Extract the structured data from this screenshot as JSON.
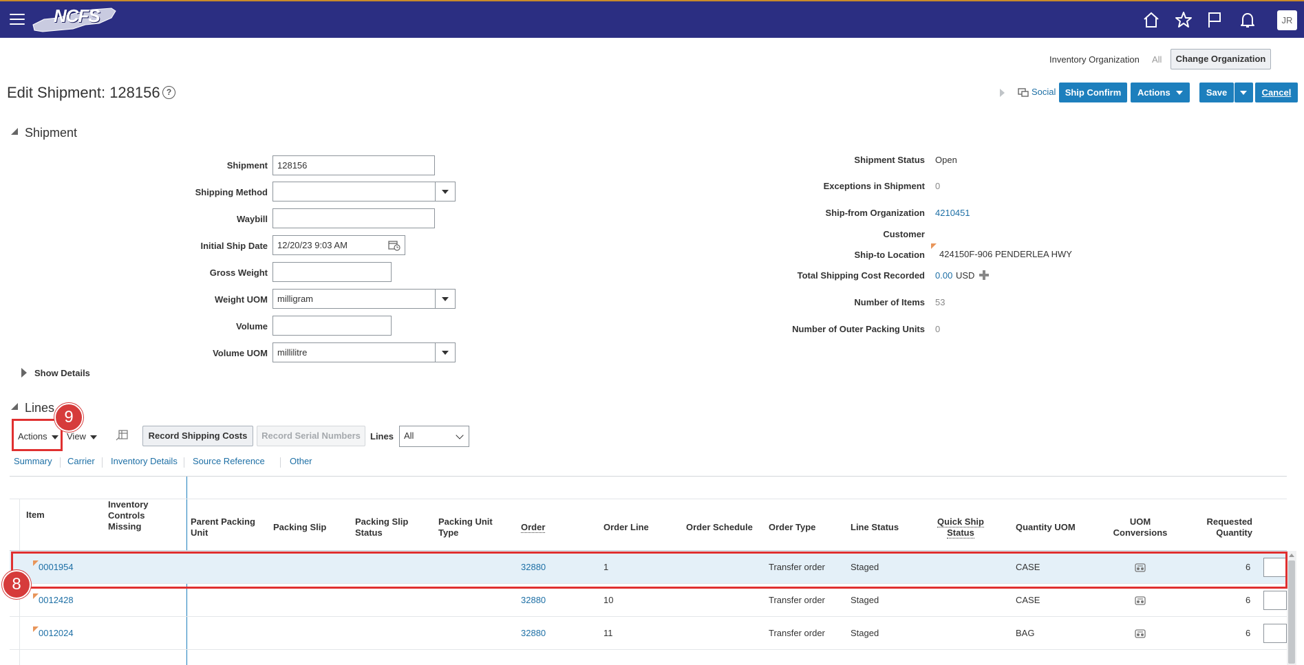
{
  "header": {
    "logo_text": "NCFS",
    "user_initials": "JR"
  },
  "org": {
    "label": "Inventory Organization",
    "value": "All",
    "change_button": "Change Organization"
  },
  "page": {
    "title": "Edit Shipment: 128156",
    "help": "?",
    "social": "Social",
    "ship_confirm": "Ship Confirm",
    "actions": "Actions",
    "save": "Save",
    "cancel": "Cancel"
  },
  "shipment_section": {
    "title": "Shipment",
    "fields": {
      "shipment_label": "Shipment",
      "shipment_value": "128156",
      "shipping_method_label": "Shipping Method",
      "shipping_method_value": "",
      "waybill_label": "Waybill",
      "waybill_value": "",
      "initial_ship_date_label": "Initial Ship Date",
      "initial_ship_date_value": "12/20/23 9:03 AM",
      "gross_weight_label": "Gross Weight",
      "gross_weight_value": "",
      "weight_uom_label": "Weight UOM",
      "weight_uom_value": "milligram",
      "volume_label": "Volume",
      "volume_value": "",
      "volume_uom_label": "Volume UOM",
      "volume_uom_value": "millilitre"
    },
    "show_details": "Show Details",
    "summary": {
      "status_label": "Shipment Status",
      "status_value": "Open",
      "exceptions_label": "Exceptions in Shipment",
      "exceptions_value": "0",
      "ship_from_label": "Ship-from Organization",
      "ship_from_value": "4210451",
      "customer_label": "Customer",
      "ship_to_label": "Ship-to Location",
      "ship_to_value": "424150F-906 PENDERLEA HWY",
      "cost_label": "Total Shipping Cost Recorded",
      "cost_value": "0.00",
      "cost_currency": "USD",
      "items_label": "Number of Items",
      "items_value": "53",
      "outer_label": "Number of Outer Packing Units",
      "outer_value": "0"
    }
  },
  "lines_section": {
    "title": "Lines",
    "toolbar": {
      "actions": "Actions",
      "view": "View",
      "record_shipping_costs": "Record Shipping Costs",
      "record_serial_numbers": "Record Serial Numbers",
      "lines_label": "Lines",
      "lines_filter": "All"
    },
    "tabs": [
      "Summary",
      "Carrier",
      "Inventory Details",
      "Source Reference",
      "Other"
    ],
    "columns": {
      "item": "Item",
      "inventory_controls_missing": "Inventory Controls Missing",
      "parent_packing_unit": "Parent Packing Unit",
      "packing_slip": "Packing Slip",
      "packing_slip_status": "Packing Slip Status",
      "packing_unit_type": "Packing Unit Type",
      "order": "Order",
      "order_line": "Order Line",
      "order_schedule": "Order Schedule",
      "order_type": "Order Type",
      "line_status": "Line Status",
      "quick_ship_status": "Quick Ship Status",
      "quantity_uom": "Quantity UOM",
      "uom_conversions": "UOM Conversions",
      "requested_quantity": "Requested Quantity"
    },
    "rows": [
      {
        "item": "0001954",
        "order": "32880",
        "order_line": "1",
        "order_type": "Transfer order",
        "line_status": "Staged",
        "quantity_uom": "CASE",
        "requested_quantity": "6"
      },
      {
        "item": "0012428",
        "order": "32880",
        "order_line": "10",
        "order_type": "Transfer order",
        "line_status": "Staged",
        "quantity_uom": "CASE",
        "requested_quantity": "6"
      },
      {
        "item": "0012024",
        "order": "32880",
        "order_line": "11",
        "order_type": "Transfer order",
        "line_status": "Staged",
        "quantity_uom": "BAG",
        "requested_quantity": "6"
      }
    ]
  },
  "annotations": {
    "step_8": "8",
    "step_9": "9",
    "highlight_color": "#e03030"
  }
}
